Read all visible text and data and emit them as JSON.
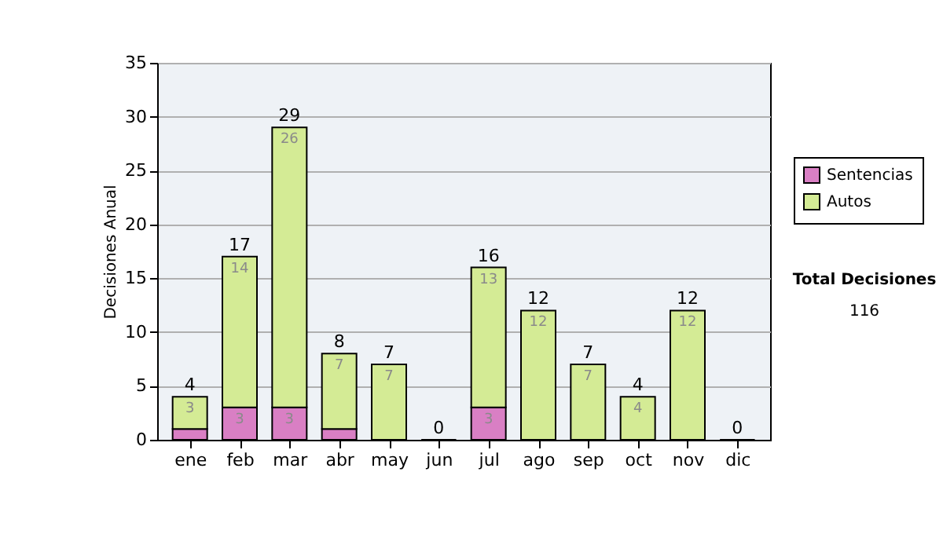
{
  "chart_data": {
    "type": "bar",
    "stacked": true,
    "ylabel": "Decisiones Anual",
    "categories": [
      "ene",
      "feb",
      "mar",
      "abr",
      "may",
      "jun",
      "jul",
      "ago",
      "sep",
      "oct",
      "nov",
      "dic"
    ],
    "series": [
      {
        "name": "Sentencias",
        "color": "#d97fc4",
        "values": [
          1,
          3,
          3,
          1,
          0,
          0,
          3,
          0,
          0,
          0,
          0,
          0
        ],
        "value_labels": [
          null,
          "3",
          "3",
          null,
          null,
          null,
          "3",
          null,
          null,
          null,
          null,
          null
        ]
      },
      {
        "name": "Autos",
        "color": "#d4eb95",
        "values": [
          3,
          14,
          26,
          7,
          7,
          0,
          13,
          12,
          7,
          4,
          12,
          0
        ],
        "value_labels": [
          "3",
          "14",
          "26",
          "7",
          "7",
          null,
          "13",
          "12",
          "7",
          "4",
          "12",
          null
        ]
      }
    ],
    "totals": [
      "4",
      "17",
      "29",
      "8",
      "7",
      "0",
      "16",
      "12",
      "7",
      "4",
      "12",
      "0"
    ],
    "ylim": [
      0,
      35
    ],
    "yticks": [
      0,
      5,
      10,
      15,
      20,
      25,
      30,
      35
    ],
    "grid": "y",
    "legend": "right",
    "annotations": [
      "Total Decisiones",
      "116"
    ]
  }
}
